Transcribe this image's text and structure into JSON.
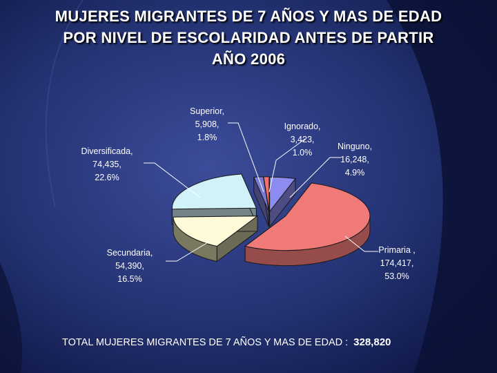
{
  "title": {
    "line1": "MUJERES MIGRANTES DE 7 AÑOS Y MAS DE EDAD",
    "line2": "POR NIVEL DE ESCOLARIDAD ANTES DE PARTIR",
    "line3": "AÑO 2006"
  },
  "total": {
    "label": "TOTAL MUJERES MIGRANTES DE 7 AÑOS Y MAS DE EDAD :",
    "value": "328,820"
  },
  "colors": {
    "background": "#101a4c",
    "ninguno": "#8c8cf0",
    "primaria": "#f07a78",
    "secundaria": "#c3c39e",
    "secundaria_top": "#fffbd8",
    "diversificada": "#d2f2fa",
    "superior": "#7a7ad8",
    "ignorado": "#f27070"
  },
  "chart_data": {
    "type": "pie",
    "style": "3d-exploded",
    "title": "MUJERES MIGRANTES DE 7 AÑOS Y MAS DE EDAD POR NIVEL DE ESCOLARIDAD ANTES DE PARTIR AÑO 2006",
    "slices": [
      {
        "key": "ninguno",
        "name": "Ninguno",
        "value": 16248,
        "value_label": "16,248",
        "percent": 4.9,
        "percent_label": "4.9%",
        "label_lines": [
          "Ninguno,",
          "16,248,",
          "4.9%"
        ]
      },
      {
        "key": "primaria",
        "name": "Primaria",
        "value": 174417,
        "value_label": "174,417",
        "percent": 53.0,
        "percent_label": "53.0%",
        "label_lines": [
          "Primaria ,",
          "174,417,",
          "53.0%"
        ]
      },
      {
        "key": "secundaria",
        "name": "Secundaria",
        "value": 54390,
        "value_label": "54,390",
        "percent": 16.5,
        "percent_label": "16.5%",
        "label_lines": [
          "Secundaria,",
          "54,390,",
          "16.5%"
        ]
      },
      {
        "key": "diversificada",
        "name": "Diversificada",
        "value": 74435,
        "value_label": "74,435",
        "percent": 22.6,
        "percent_label": "22.6%",
        "label_lines": [
          "Diversificada,",
          "74,435,",
          "22.6%"
        ]
      },
      {
        "key": "superior",
        "name": "Superior",
        "value": 5908,
        "value_label": "5,908",
        "percent": 1.8,
        "percent_label": "1.8%",
        "label_lines": [
          "Superior,",
          "5,908,",
          "1.8%"
        ]
      },
      {
        "key": "ignorado",
        "name": "Ignorado",
        "value": 3423,
        "value_label": "3,423",
        "percent": 1.0,
        "percent_label": "1.0%",
        "label_lines": [
          "Ignorado,",
          "3,423,",
          "1.0%"
        ]
      }
    ]
  }
}
